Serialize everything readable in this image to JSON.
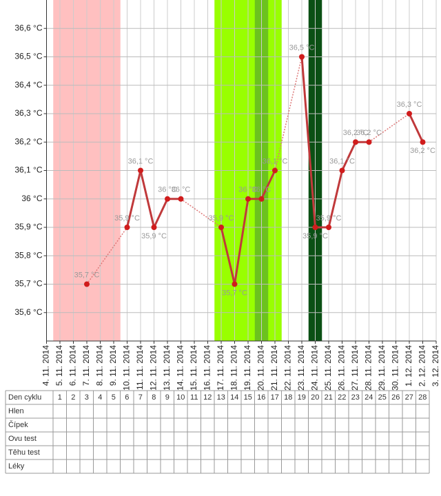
{
  "chart_data": {
    "type": "line",
    "x": [
      "4. 11. 2014",
      "5. 11. 2014",
      "6. 11. 2014",
      "7. 11. 2014",
      "8. 11. 2014",
      "9. 11. 2014",
      "10. 11. 2014",
      "11. 11. 2014",
      "12. 11. 2014",
      "13. 11. 2014",
      "14. 11. 2014",
      "15. 11. 2014",
      "16. 11. 2014",
      "17. 11. 2014",
      "18. 11. 2014",
      "19. 11. 2014",
      "20. 11. 2014",
      "21. 11. 2014",
      "22. 11. 2014",
      "23. 11. 2014",
      "24. 11. 2014",
      "25. 11. 2014",
      "26. 11. 2014",
      "27. 11. 2014",
      "28. 11. 2014",
      "29. 11. 2014",
      "30. 11. 2014",
      "1. 12. 2014",
      "2. 12. 2014",
      "3. 12. 2014"
    ],
    "series": [
      {
        "color": "#c0393b",
        "values": [
          null,
          null,
          null,
          35.7,
          null,
          null,
          35.9,
          36.1,
          35.9,
          36.0,
          36.0,
          null,
          null,
          35.9,
          35.7,
          36.0,
          36.0,
          36.1,
          null,
          36.5,
          35.9,
          35.9,
          36.1,
          36.2,
          36.2,
          null,
          null,
          36.3,
          36.2,
          null
        ],
        "value_labels": [
          null,
          null,
          null,
          "35,7 °C",
          null,
          null,
          "35,9 °C",
          "36,1 °C",
          "35,9 °C",
          "36 °C",
          "36 °C",
          null,
          null,
          "35,9 °C",
          "35,7 °C",
          "36 °C",
          "36 °C",
          "36,1 °C",
          null,
          "36,5 °C",
          "35,9 °C",
          "35,9 °C",
          "36,1 °C",
          "36,2 °C",
          "36,2 °C",
          null,
          null,
          "36,3 °C",
          "36,2 °C",
          null
        ]
      }
    ],
    "ylim": [
      35.5,
      36.7
    ],
    "yticks": [
      {
        "value": 35.6,
        "label": "35,6 °C"
      },
      {
        "value": 35.7,
        "label": "35,7 °C"
      },
      {
        "value": 35.8,
        "label": "35,8 °C"
      },
      {
        "value": 35.9,
        "label": "35,9 °C"
      },
      {
        "value": 36.0,
        "label": "36 °C"
      },
      {
        "value": 36.1,
        "label": "36,1 °C"
      },
      {
        "value": 36.2,
        "label": "36,2 °C"
      },
      {
        "value": 36.3,
        "label": "36,3 °C"
      },
      {
        "value": 36.4,
        "label": "36,4 °C"
      },
      {
        "value": 36.5,
        "label": "36,5 °C"
      },
      {
        "value": 36.6,
        "label": "36,6 °C"
      }
    ],
    "grid": true,
    "bands": [
      {
        "from": 1,
        "to": 5,
        "color": "#ffc0c0"
      },
      {
        "from": 13,
        "to": 17,
        "color": "#99ff00"
      },
      {
        "from": 16,
        "to": 16,
        "color": "#6cc21e"
      },
      {
        "from": 20,
        "to": 20,
        "color": "#0b5014"
      }
    ]
  },
  "table": {
    "row_labels": [
      "Den cyklu",
      "Hlen",
      "Čípek",
      "Ovu test",
      "Těhu test",
      "Léky"
    ],
    "cycle_days": [
      1,
      2,
      3,
      4,
      5,
      6,
      7,
      8,
      9,
      10,
      11,
      12,
      13,
      14,
      15,
      16,
      17,
      18,
      19,
      20,
      21,
      22,
      23,
      24,
      25,
      26,
      27,
      28
    ]
  }
}
